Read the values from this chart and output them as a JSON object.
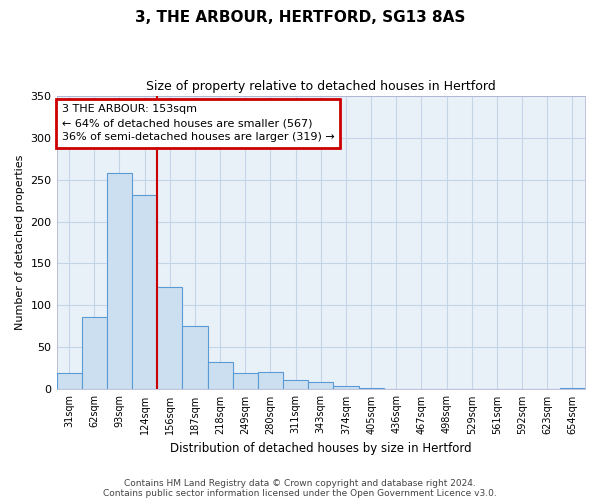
{
  "title": "3, THE ARBOUR, HERTFORD, SG13 8AS",
  "subtitle": "Size of property relative to detached houses in Hertford",
  "xlabel": "Distribution of detached houses by size in Hertford",
  "ylabel": "Number of detached properties",
  "bin_labels": [
    "31sqm",
    "62sqm",
    "93sqm",
    "124sqm",
    "156sqm",
    "187sqm",
    "218sqm",
    "249sqm",
    "280sqm",
    "311sqm",
    "343sqm",
    "374sqm",
    "405sqm",
    "436sqm",
    "467sqm",
    "498sqm",
    "529sqm",
    "561sqm",
    "592sqm",
    "623sqm",
    "654sqm"
  ],
  "bar_heights": [
    19,
    86,
    258,
    231,
    122,
    76,
    33,
    20,
    21,
    11,
    9,
    4,
    2,
    1,
    0,
    0,
    0,
    0,
    0,
    0,
    2
  ],
  "bar_color": "#ccdff0",
  "bar_edge_color": "#5b9bd5",
  "marker_line_index": 4,
  "marker_label": "3 THE ARBOUR: 153sqm",
  "annotation_line1": "← 64% of detached houses are smaller (567)",
  "annotation_line2": "36% of semi-detached houses are larger (319) →",
  "annotation_box_color": "#ffffff",
  "annotation_box_edge": "#cc0000",
  "marker_line_color": "#cc0000",
  "bg_color": "#e8f0f8",
  "ylim": [
    0,
    350
  ],
  "yticks": [
    0,
    50,
    100,
    150,
    200,
    250,
    300,
    350
  ],
  "grid_color": "#c5d5e8",
  "footer1": "Contains HM Land Registry data © Crown copyright and database right 2024.",
  "footer2": "Contains public sector information licensed under the Open Government Licence v3.0."
}
